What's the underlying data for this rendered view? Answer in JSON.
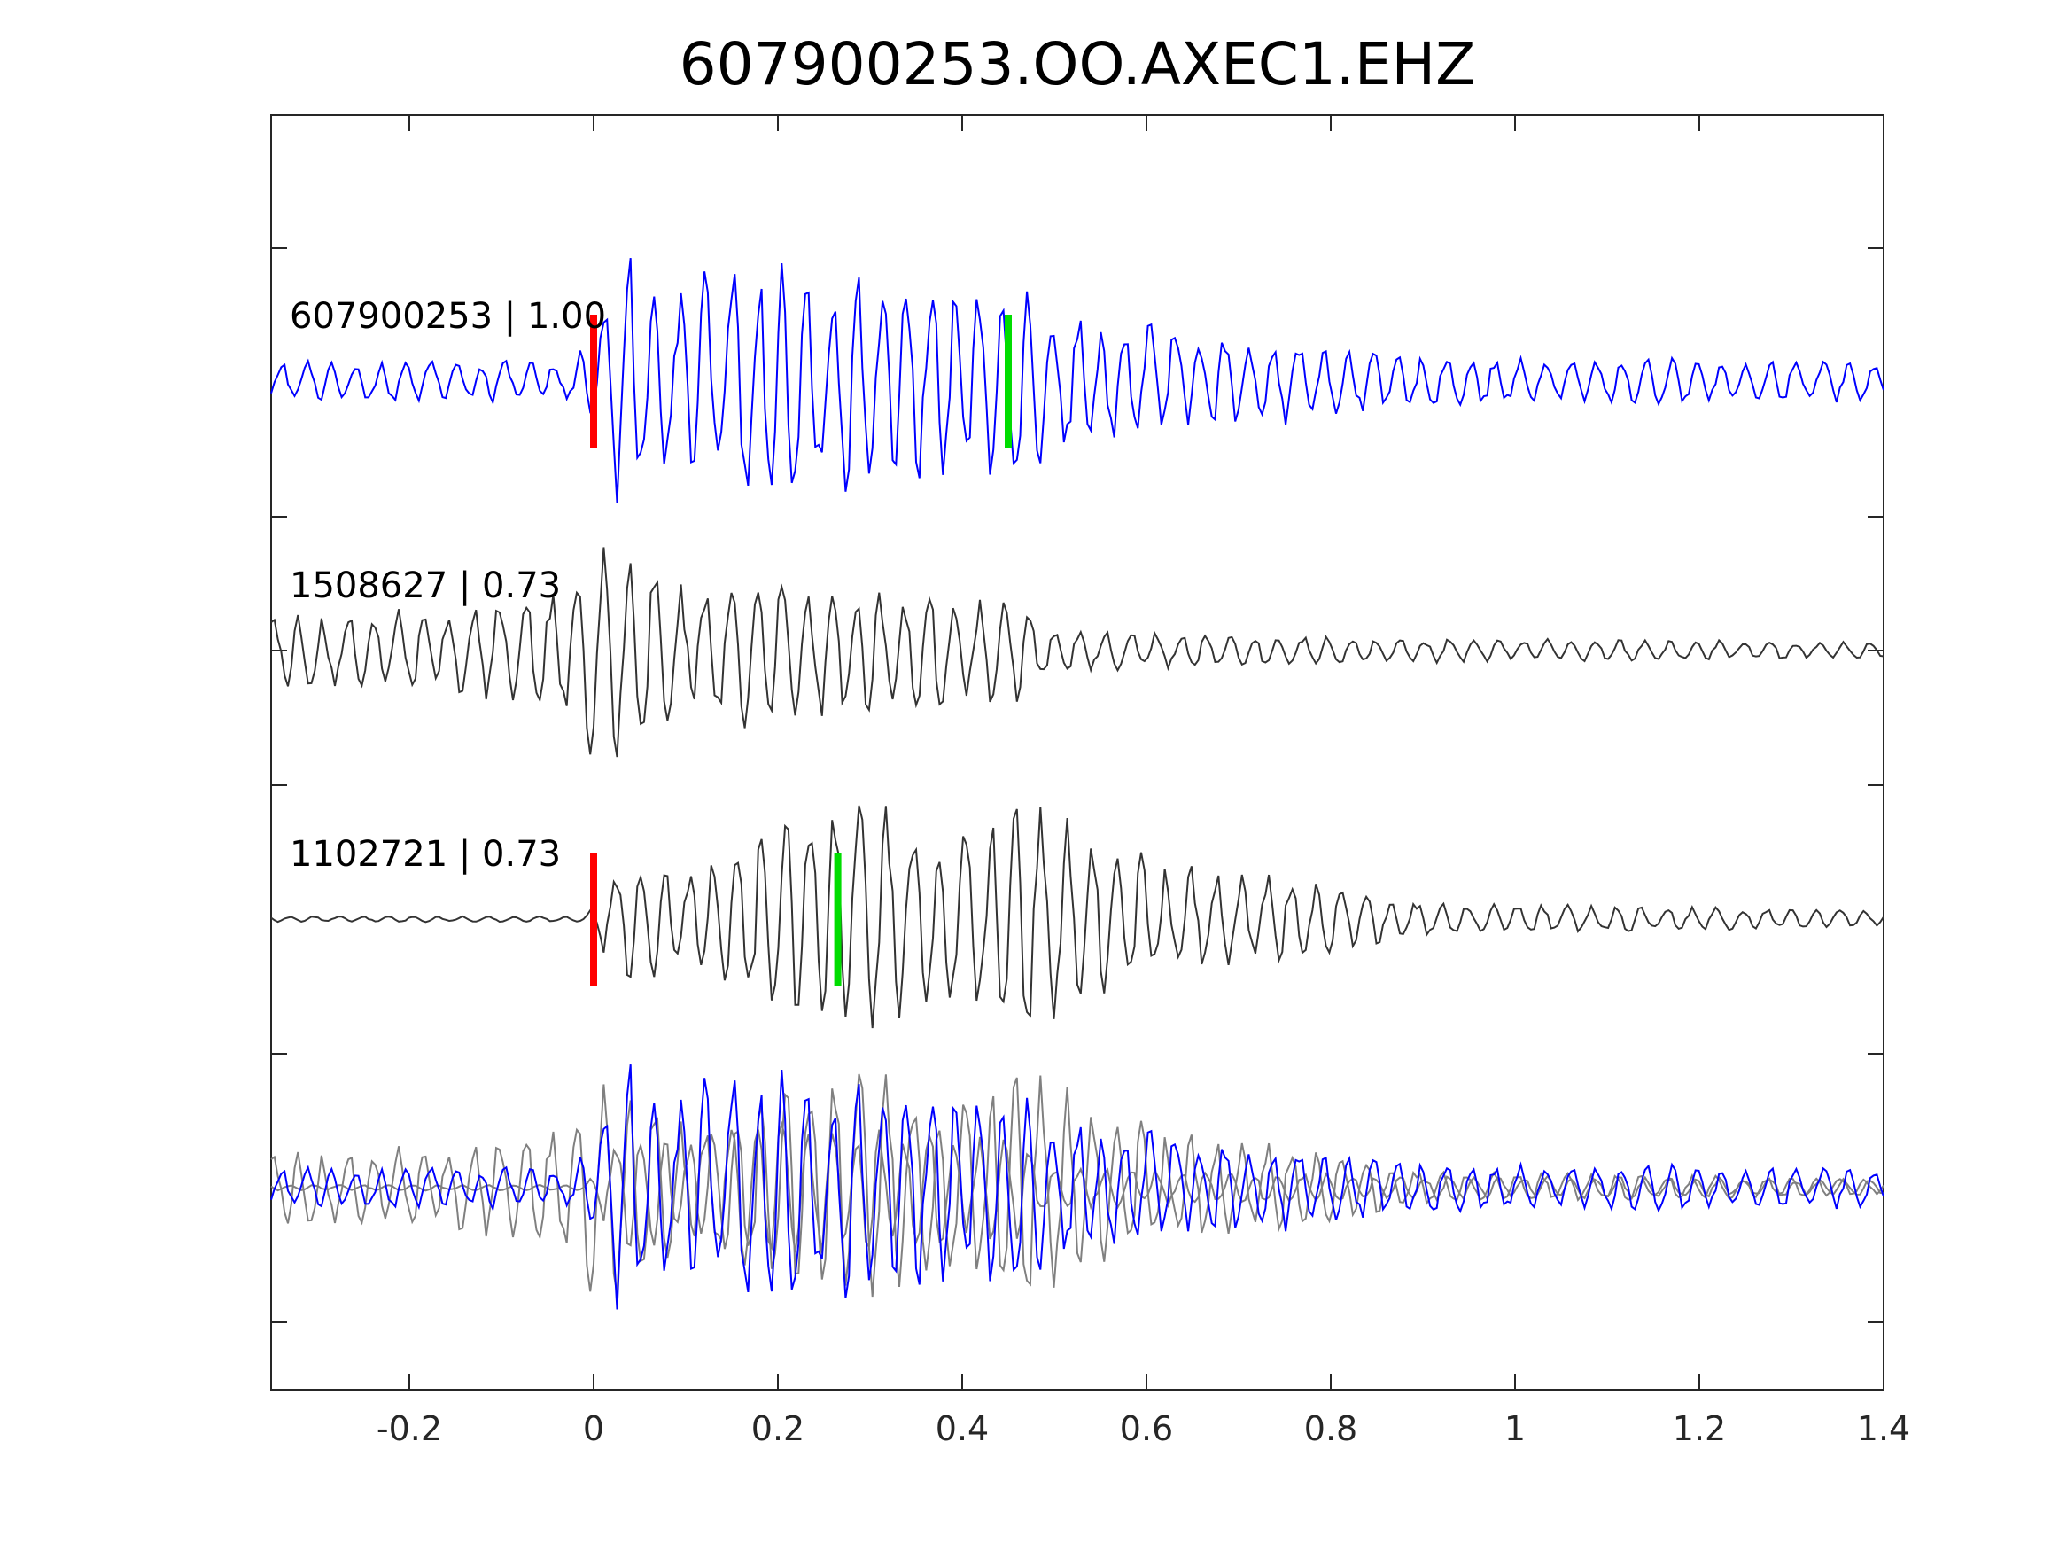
{
  "chart_data": {
    "type": "line",
    "title": "607900253.OO.AXEC1.EHZ",
    "xlabel": "",
    "ylabel": "",
    "xlim": [
      -0.35,
      1.4
    ],
    "x_ticks": [
      {
        "value": -0.2,
        "label": "-0.2"
      },
      {
        "value": 0,
        "label": "0"
      },
      {
        "value": 0.2,
        "label": "0.2"
      },
      {
        "value": 0.4,
        "label": "0.4"
      },
      {
        "value": 0.6,
        "label": "0.6"
      },
      {
        "value": 0.8,
        "label": "0.8"
      },
      {
        "value": 1,
        "label": "1"
      },
      {
        "value": 1.2,
        "label": "1.2"
      },
      {
        "value": 1.4,
        "label": "1.4"
      }
    ],
    "y_ticks_count": 9,
    "grid": false,
    "traces": [
      {
        "label": "607900253 | 1.00",
        "color": "#0000ff",
        "picks": [
          {
            "phase_color": "#ff0000",
            "x": 0.0
          },
          {
            "phase_color": "#00dd00",
            "x": 0.45
          }
        ],
        "envelope": [
          [
            -0.35,
            0.15
          ],
          [
            -0.02,
            0.15
          ],
          [
            0.0,
            0.4
          ],
          [
            0.03,
            1.0
          ],
          [
            0.08,
            0.7
          ],
          [
            0.15,
            0.85
          ],
          [
            0.3,
            0.75
          ],
          [
            0.45,
            0.75
          ],
          [
            0.5,
            0.55
          ],
          [
            0.62,
            0.4
          ],
          [
            0.75,
            0.3
          ],
          [
            0.9,
            0.18
          ],
          [
            1.4,
            0.15
          ]
        ]
      },
      {
        "label": "1508627 | 0.73",
        "color": "#333333",
        "picks": [],
        "envelope": [
          [
            -0.35,
            0.25
          ],
          [
            -0.1,
            0.35
          ],
          [
            -0.02,
            0.45
          ],
          [
            -0.01,
            1.0
          ],
          [
            0.02,
            0.8
          ],
          [
            0.1,
            0.5
          ],
          [
            0.18,
            0.55
          ],
          [
            0.3,
            0.45
          ],
          [
            0.45,
            0.45
          ],
          [
            0.5,
            0.15
          ],
          [
            0.7,
            0.12
          ],
          [
            0.9,
            0.09
          ],
          [
            1.4,
            0.06
          ]
        ]
      },
      {
        "label": "1102721 | 0.73",
        "color": "#333333",
        "picks": [
          {
            "phase_color": "#ff0000",
            "x": 0.0
          },
          {
            "phase_color": "#00dd00",
            "x": 0.265
          }
        ],
        "envelope": [
          [
            -0.35,
            0.02
          ],
          [
            -0.01,
            0.02
          ],
          [
            0.04,
            0.55
          ],
          [
            0.12,
            0.35
          ],
          [
            0.2,
            0.8
          ],
          [
            0.28,
            0.85
          ],
          [
            0.4,
            0.7
          ],
          [
            0.48,
            0.9
          ],
          [
            0.55,
            0.65
          ],
          [
            0.62,
            0.4
          ],
          [
            0.75,
            0.3
          ],
          [
            0.9,
            0.12
          ],
          [
            1.4,
            0.06
          ]
        ]
      }
    ],
    "overlay": {
      "series_colors": [
        "#0000ff",
        "#808080",
        "#808080"
      ]
    }
  }
}
